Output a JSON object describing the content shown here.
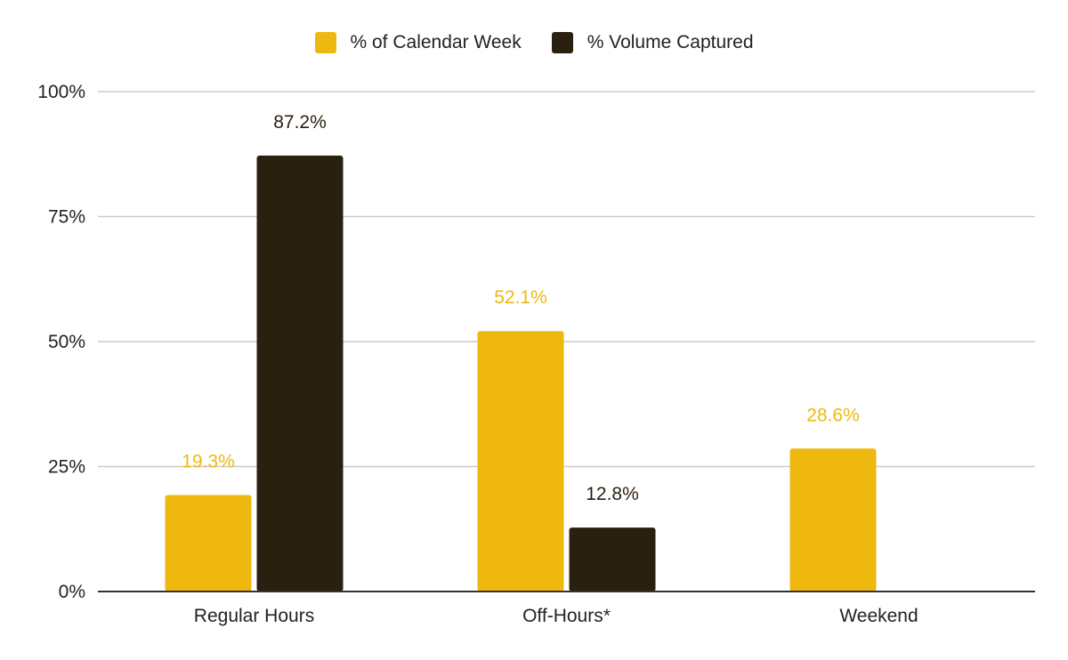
{
  "colors": {
    "series_1": "#efb80f",
    "series_2": "#2a2010",
    "grid": "#cccccc",
    "axis": "#333333",
    "text": "#222222"
  },
  "legend": {
    "items": [
      {
        "label": "% of Calendar Week",
        "color_key": "series_1"
      },
      {
        "label": "% Volume Captured",
        "color_key": "series_2"
      }
    ]
  },
  "chart_data": {
    "type": "bar",
    "title": "",
    "xlabel": "",
    "ylabel": "",
    "categories": [
      "Regular Hours",
      "Off-Hours*",
      "Weekend"
    ],
    "series": [
      {
        "name": "% of Calendar Week",
        "values": [
          19.3,
          52.1,
          28.6
        ],
        "labels": [
          "19.3%",
          "52.1%",
          "28.6%"
        ]
      },
      {
        "name": "% Volume Captured",
        "values": [
          87.2,
          12.8,
          null
        ],
        "labels": [
          "87.2%",
          "12.8%",
          null
        ]
      }
    ],
    "ylim": [
      0,
      100
    ],
    "yticks": [
      0,
      25,
      50,
      75,
      100
    ],
    "ytick_labels": [
      "0%",
      "25%",
      "50%",
      "75%",
      "100%"
    ],
    "grid": true,
    "legend_position": "top-center"
  }
}
